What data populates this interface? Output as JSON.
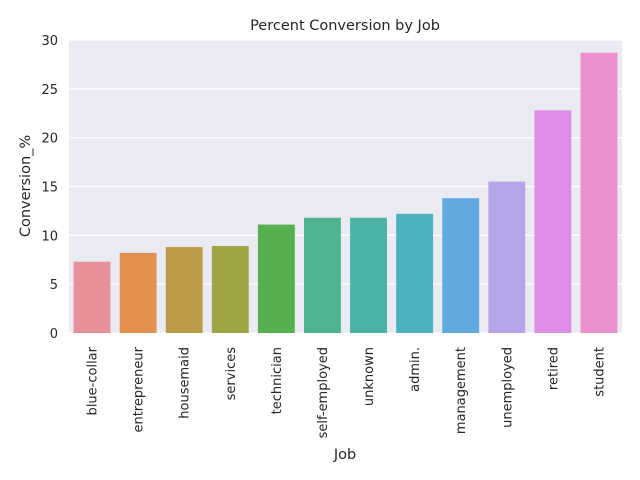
{
  "chart_data": {
    "type": "bar",
    "title": "Percent Conversion by Job",
    "xlabel": "Job",
    "ylabel": "Conversion_%",
    "categories": [
      "blue-collar",
      "entrepreneur",
      "housemaid",
      "services",
      "technician",
      "self-employed",
      "unknown",
      "admin.",
      "management",
      "unemployed",
      "retired",
      "student"
    ],
    "values": [
      7.3,
      8.2,
      8.8,
      8.9,
      11.1,
      11.8,
      11.8,
      12.2,
      13.8,
      15.5,
      22.8,
      28.7
    ],
    "colors": [
      "#e8909a",
      "#e49050",
      "#bd9a48",
      "#9fa446",
      "#57b04f",
      "#4eb38e",
      "#4cb2a4",
      "#4db0be",
      "#60aae0",
      "#b7a5ec",
      "#e08be6",
      "#ea91cd"
    ],
    "ylim": [
      0,
      30
    ],
    "yticks": [
      0,
      5,
      10,
      15,
      20,
      25,
      30
    ],
    "grid": true,
    "background": "#eaeaf2"
  }
}
